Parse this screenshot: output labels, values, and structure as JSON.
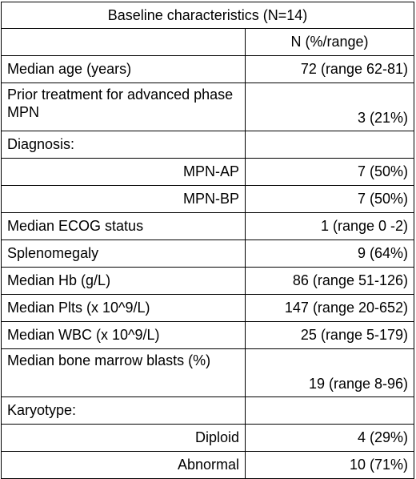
{
  "table": {
    "title": "Baseline characteristics (N=14)",
    "header_value": "N (%/range)",
    "rows": [
      {
        "label": "Median age (years)",
        "value": "72 (range 62-81)"
      },
      {
        "label": "Prior treatment for advanced phase MPN",
        "value": "3 (21%)"
      },
      {
        "label": "Diagnosis:",
        "value": ""
      },
      {
        "label": "MPN-AP",
        "value": "7 (50%)"
      },
      {
        "label": "MPN-BP",
        "value": "7 (50%)"
      },
      {
        "label": "Median ECOG status",
        "value": "1 (range 0 -2)"
      },
      {
        "label": "Splenomegaly",
        "value": "9 (64%)"
      },
      {
        "label": "Median Hb (g/L)",
        "value": "86 (range 51-126)"
      },
      {
        "label": "Median Plts (x 10^9/L)",
        "value": "147 (range 20-652)"
      },
      {
        "label": "Median WBC (x 10^9/L)",
        "value": "25 (range 5-179)"
      },
      {
        "label": "Median bone marrow blasts (%)",
        "value": "19 (range 8-96)"
      },
      {
        "label": "Karyotype:",
        "value": ""
      },
      {
        "label": "Diploid",
        "value": "4 (29%)"
      },
      {
        "label": "Abnormal",
        "value": "10 (71%)"
      }
    ]
  }
}
